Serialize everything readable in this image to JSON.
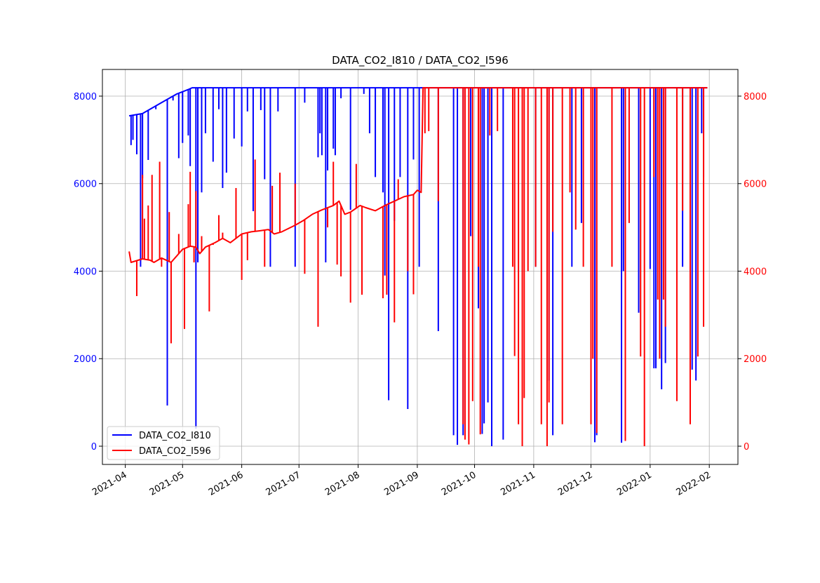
{
  "chart_data": {
    "type": "line",
    "title": "DATA_CO2_I810 / DATA_CO2_I596",
    "xlabel": "",
    "ylabel_left": "",
    "ylabel_right": "",
    "xlim": [
      "2021-03-20",
      "2022-02-16"
    ],
    "ylim_left": [
      -417,
      8609
    ],
    "ylim_right": [
      -417,
      8609
    ],
    "grid": true,
    "legend_position": "lower-left",
    "x_ticks": [
      "2021-04",
      "2021-05",
      "2021-06",
      "2021-07",
      "2021-08",
      "2021-09",
      "2021-10",
      "2021-11",
      "2021-12",
      "2022-01",
      "2022-02"
    ],
    "y_ticks_left": [
      "0",
      "2000",
      "4000",
      "6000",
      "8000"
    ],
    "y_ticks_right": [
      "0",
      "2000",
      "4000",
      "6000",
      "8000"
    ],
    "axis_colors": {
      "left": "#0000ff",
      "right": "#ff0000"
    },
    "series": [
      {
        "name": "DATA_CO2_I810",
        "axis": "left",
        "color": "#0000ff",
        "baseline": [
          [
            "2021-04-03",
            7550
          ],
          [
            "2021-04-10",
            7600
          ],
          [
            "2021-04-20",
            7850
          ],
          [
            "2021-04-28",
            8050
          ],
          [
            "2021-05-04",
            8150
          ],
          [
            "2021-05-06",
            8190
          ],
          [
            "2022-01-31",
            8190
          ]
        ],
        "drops": [
          [
            "2021-04-04",
            6880
          ],
          [
            "2021-04-05",
            7000
          ],
          [
            "2021-04-07",
            6670
          ],
          [
            "2021-04-09",
            4100
          ],
          [
            "2021-04-10",
            6120
          ],
          [
            "2021-04-13",
            6540
          ],
          [
            "2021-04-17",
            7700
          ],
          [
            "2021-04-23",
            930
          ],
          [
            "2021-04-26",
            7900
          ],
          [
            "2021-04-29",
            6580
          ],
          [
            "2021-05-01",
            6930
          ],
          [
            "2021-05-04",
            7100
          ],
          [
            "2021-05-05",
            6400
          ],
          [
            "2021-05-08",
            400
          ],
          [
            "2021-05-09",
            4200
          ],
          [
            "2021-05-11",
            5800
          ],
          [
            "2021-05-13",
            7150
          ],
          [
            "2021-05-17",
            6500
          ],
          [
            "2021-05-20",
            7700
          ],
          [
            "2021-05-22",
            5900
          ],
          [
            "2021-05-24",
            6250
          ],
          [
            "2021-05-28",
            7030
          ],
          [
            "2021-06-01",
            6850
          ],
          [
            "2021-06-04",
            7650
          ],
          [
            "2021-06-07",
            5370
          ],
          [
            "2021-06-11",
            7680
          ],
          [
            "2021-06-13",
            6100
          ],
          [
            "2021-06-16",
            4100
          ],
          [
            "2021-06-20",
            7650
          ],
          [
            "2021-06-29",
            4100
          ],
          [
            "2021-07-04",
            7850
          ],
          [
            "2021-07-11",
            6600
          ],
          [
            "2021-07-12",
            7150
          ],
          [
            "2021-07-13",
            6650
          ],
          [
            "2021-07-15",
            4200
          ],
          [
            "2021-07-16",
            6300
          ],
          [
            "2021-07-19",
            6800
          ],
          [
            "2021-07-20",
            6650
          ],
          [
            "2021-07-23",
            7950
          ],
          [
            "2021-07-28",
            5400
          ],
          [
            "2021-08-04",
            8050
          ],
          [
            "2021-08-07",
            7150
          ],
          [
            "2021-08-10",
            6150
          ],
          [
            "2021-08-14",
            5800
          ],
          [
            "2021-08-15",
            3900
          ],
          [
            "2021-08-17",
            1050
          ],
          [
            "2021-08-20",
            5150
          ],
          [
            "2021-08-23",
            6150
          ],
          [
            "2021-08-27",
            850
          ],
          [
            "2021-08-30",
            6550
          ],
          [
            "2021-09-02",
            4100
          ],
          [
            "2021-09-12",
            2630
          ],
          [
            "2021-09-20",
            250
          ],
          [
            "2021-09-22",
            30
          ],
          [
            "2021-09-25",
            250
          ],
          [
            "2021-09-29",
            4800
          ],
          [
            "2021-10-03",
            3150
          ],
          [
            "2021-10-05",
            280
          ],
          [
            "2021-10-06",
            520
          ],
          [
            "2021-10-08",
            1000
          ],
          [
            "2021-10-10",
            0
          ],
          [
            "2021-10-16",
            150
          ],
          [
            "2021-11-02",
            4100
          ],
          [
            "2021-11-09",
            1500
          ],
          [
            "2021-11-11",
            250
          ],
          [
            "2021-11-21",
            4100
          ],
          [
            "2021-11-26",
            5100
          ],
          [
            "2021-12-03",
            90
          ],
          [
            "2021-12-04",
            250
          ],
          [
            "2021-12-17",
            80
          ],
          [
            "2021-12-18",
            4000
          ],
          [
            "2021-12-26",
            3050
          ],
          [
            "2022-01-01",
            4050
          ],
          [
            "2022-01-03",
            1780
          ],
          [
            "2022-01-04",
            1780
          ],
          [
            "2022-01-07",
            1300
          ],
          [
            "2022-01-09",
            1900
          ],
          [
            "2022-01-18",
            4100
          ],
          [
            "2022-01-23",
            1750
          ],
          [
            "2022-01-25",
            1500
          ],
          [
            "2022-01-28",
            7150
          ],
          [
            "2022-01-29",
            6150
          ]
        ]
      },
      {
        "name": "DATA_CO2_I596",
        "axis": "right",
        "color": "#ff0000",
        "baseline": [
          [
            "2021-04-03",
            4450
          ],
          [
            "2021-04-04",
            4200
          ],
          [
            "2021-04-10",
            4280
          ],
          [
            "2021-04-14",
            4250
          ],
          [
            "2021-04-16",
            4200
          ],
          [
            "2021-04-20",
            4300
          ],
          [
            "2021-04-25",
            4200
          ],
          [
            "2021-04-28",
            4350
          ],
          [
            "2021-05-01",
            4500
          ],
          [
            "2021-05-05",
            4570
          ],
          [
            "2021-05-08",
            4550
          ],
          [
            "2021-05-10",
            4400
          ],
          [
            "2021-05-13",
            4550
          ],
          [
            "2021-05-18",
            4650
          ],
          [
            "2021-05-22",
            4750
          ],
          [
            "2021-05-26",
            4650
          ],
          [
            "2021-06-01",
            4850
          ],
          [
            "2021-06-06",
            4900
          ],
          [
            "2021-06-10",
            4920
          ],
          [
            "2021-06-15",
            4950
          ],
          [
            "2021-06-18",
            4850
          ],
          [
            "2021-06-22",
            4900
          ],
          [
            "2021-06-29",
            5050
          ],
          [
            "2021-07-03",
            5150
          ],
          [
            "2021-07-08",
            5300
          ],
          [
            "2021-07-13",
            5400
          ],
          [
            "2021-07-19",
            5500
          ],
          [
            "2021-07-22",
            5600
          ],
          [
            "2021-07-25",
            5300
          ],
          [
            "2021-07-28",
            5350
          ],
          [
            "2021-08-02",
            5500
          ],
          [
            "2021-08-05",
            5450
          ],
          [
            "2021-08-10",
            5380
          ],
          [
            "2021-08-15",
            5500
          ],
          [
            "2021-08-20",
            5600
          ],
          [
            "2021-08-25",
            5700
          ],
          [
            "2021-08-30",
            5750
          ],
          [
            "2021-09-01",
            5850
          ],
          [
            "2021-09-03",
            5800
          ],
          [
            "2021-09-04",
            8190
          ],
          [
            "2022-01-31",
            8190
          ]
        ],
        "drops": [
          [
            "2021-04-07",
            3430
          ],
          [
            "2021-04-10",
            6200
          ],
          [
            "2021-04-11",
            5200
          ],
          [
            "2021-04-13",
            5500
          ],
          [
            "2021-04-15",
            6200
          ],
          [
            "2021-04-19",
            6500
          ],
          [
            "2021-04-20",
            4100
          ],
          [
            "2021-04-24",
            5350
          ],
          [
            "2021-04-25",
            2350
          ],
          [
            "2021-04-29",
            4850
          ],
          [
            "2021-05-02",
            2680
          ],
          [
            "2021-05-04",
            5530
          ],
          [
            "2021-05-05",
            6270
          ],
          [
            "2021-05-07",
            4200
          ],
          [
            "2021-05-08",
            5830
          ],
          [
            "2021-05-11",
            4800
          ],
          [
            "2021-05-15",
            3080
          ],
          [
            "2021-05-17",
            4600
          ],
          [
            "2021-05-20",
            5280
          ],
          [
            "2021-05-22",
            4880
          ],
          [
            "2021-05-29",
            5900
          ],
          [
            "2021-06-01",
            3800
          ],
          [
            "2021-06-04",
            4250
          ],
          [
            "2021-06-08",
            6550
          ],
          [
            "2021-06-13",
            4100
          ],
          [
            "2021-06-17",
            5950
          ],
          [
            "2021-06-21",
            6250
          ],
          [
            "2021-06-29",
            6000
          ],
          [
            "2021-07-04",
            3940
          ],
          [
            "2021-07-11",
            2730
          ],
          [
            "2021-07-16",
            5000
          ],
          [
            "2021-07-19",
            6500
          ],
          [
            "2021-07-21",
            4150
          ],
          [
            "2021-07-23",
            3880
          ],
          [
            "2021-07-28",
            3280
          ],
          [
            "2021-07-31",
            6450
          ],
          [
            "2021-08-03",
            3460
          ],
          [
            "2021-08-14",
            3380
          ],
          [
            "2021-08-16",
            3460
          ],
          [
            "2021-08-20",
            2830
          ],
          [
            "2021-08-22",
            6100
          ],
          [
            "2021-08-27",
            4000
          ],
          [
            "2021-08-30",
            3470
          ],
          [
            "2021-09-05",
            7150
          ],
          [
            "2021-09-07",
            7200
          ],
          [
            "2021-09-12",
            5600
          ],
          [
            "2021-09-25",
            500
          ],
          [
            "2021-09-26",
            150
          ],
          [
            "2021-09-28",
            40
          ],
          [
            "2021-09-30",
            1030
          ],
          [
            "2021-10-03",
            4100
          ],
          [
            "2021-10-04",
            270
          ],
          [
            "2021-10-09",
            7100
          ],
          [
            "2021-10-13",
            7200
          ],
          [
            "2021-10-21",
            4100
          ],
          [
            "2021-10-22",
            2060
          ],
          [
            "2021-10-24",
            500
          ],
          [
            "2021-10-26",
            0
          ],
          [
            "2021-10-27",
            1100
          ],
          [
            "2021-10-29",
            4000
          ],
          [
            "2021-11-02",
            4100
          ],
          [
            "2021-11-05",
            500
          ],
          [
            "2021-11-08",
            0
          ],
          [
            "2021-11-09",
            1000
          ],
          [
            "2021-11-11",
            4900
          ],
          [
            "2021-11-16",
            500
          ],
          [
            "2021-11-20",
            5800
          ],
          [
            "2021-11-23",
            4950
          ],
          [
            "2021-11-27",
            4100
          ],
          [
            "2021-12-01",
            500
          ],
          [
            "2021-12-02",
            2000
          ],
          [
            "2021-12-04",
            300
          ],
          [
            "2021-12-12",
            4100
          ],
          [
            "2021-12-19",
            120
          ],
          [
            "2021-12-21",
            5100
          ],
          [
            "2021-12-27",
            2050
          ],
          [
            "2021-12-29",
            0
          ],
          [
            "2022-01-03",
            6150
          ],
          [
            "2022-01-05",
            3350
          ],
          [
            "2022-01-06",
            2000
          ],
          [
            "2022-01-08",
            3350
          ],
          [
            "2022-01-09",
            2730
          ],
          [
            "2022-01-15",
            1030
          ],
          [
            "2022-01-18",
            5380
          ],
          [
            "2022-01-22",
            500
          ],
          [
            "2022-01-26",
            2050
          ],
          [
            "2022-01-29",
            2730
          ]
        ]
      }
    ]
  }
}
